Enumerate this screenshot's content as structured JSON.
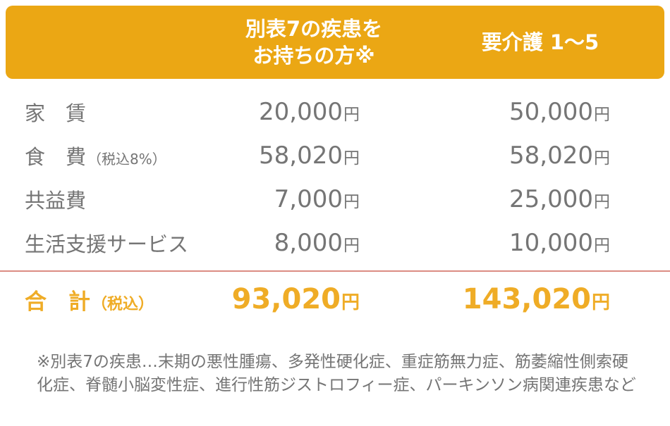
{
  "colors": {
    "header_bg": "#EBA714",
    "header_text": "#FFFFFF",
    "body_text": "#757575",
    "total_accent": "#EFAC26",
    "separator_line": "#DC8C83",
    "page_bg": "#FFFFFF"
  },
  "table": {
    "unit": "円",
    "header": {
      "col1": "",
      "col2_line1": "別表7の疾患を",
      "col2_line2": "お持ちの方※",
      "col3": "要介護 1〜5"
    },
    "rows": [
      {
        "label": "家　賃",
        "note": "",
        "besshi7": "20,000",
        "youkaigo": "50,000"
      },
      {
        "label": "食　費",
        "note": "（税込8%）",
        "besshi7": "58,020",
        "youkaigo": "58,020"
      },
      {
        "label": "共益費",
        "note": "",
        "besshi7": "7,000",
        "youkaigo": "25,000"
      },
      {
        "label": "生活支援サービス",
        "note": "",
        "besshi7": "8,000",
        "youkaigo": "10,000"
      }
    ],
    "total": {
      "label": "合　計",
      "note": "（税込）",
      "besshi7": "93,020",
      "youkaigo": "143,020"
    },
    "footnote": "※別表7の疾患…末期の悪性腫瘍、多発性硬化症、重症筋無力症、筋萎縮性側索硬化症、脊髄小脳変性症、進行性筋ジストロフィー症、パーキンソン病関連疾患など"
  },
  "chart_data": {
    "type": "table",
    "columns": [
      "",
      "別表7の疾患をお持ちの方※",
      "要介護 1〜5"
    ],
    "rows": [
      [
        "家賃",
        "20,000円",
        "50,000円"
      ],
      [
        "食費（税込8%）",
        "58,020円",
        "58,020円"
      ],
      [
        "共益費",
        "7,000円",
        "25,000円"
      ],
      [
        "生活支援サービス",
        "8,000円",
        "10,000円"
      ],
      [
        "合計（税込）",
        "93,020円",
        "143,020円"
      ]
    ],
    "footnote": "※別表7の疾患…末期の悪性腫瘍、多発性硬化症、重症筋無力症、筋萎縮性側索硬化症、脊髄小脳変性症、進行性筋ジストロフィー症、パーキンソン病関連疾患など"
  }
}
